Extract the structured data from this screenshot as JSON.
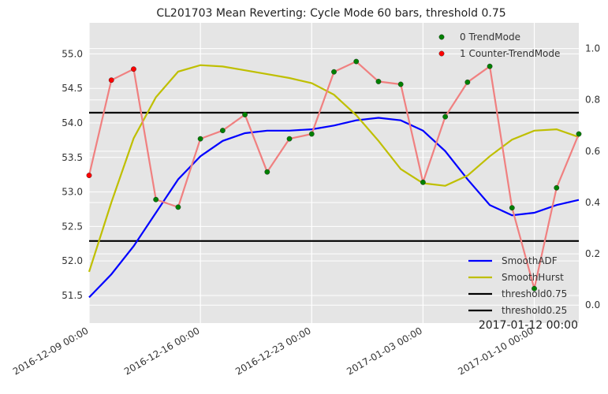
{
  "chart_data": {
    "type": "line",
    "title": "CL201703 Mean Reverting: Cycle Mode 60 bars, threshold 0.75",
    "x_tick_labels": [
      "2016-12-09 00:00",
      "2016-12-16 00:00",
      "2016-12-23 00:00",
      "2017-01-03 00:00",
      "2017-01-10 00:00"
    ],
    "x_tick_index": [
      0,
      5,
      10,
      15,
      20
    ],
    "corner_label": "2017-01-12 00:00",
    "y_left": {
      "ylim": [
        51.1,
        55.45
      ],
      "ticks": [
        51.5,
        52.0,
        52.5,
        53.0,
        53.5,
        54.0,
        54.5,
        55.0
      ],
      "tick_labels": [
        "51.5",
        "52.0",
        "52.5",
        "53.0",
        "53.5",
        "54.0",
        "54.5",
        "55.0"
      ]
    },
    "y_right": {
      "ylim": [
        -0.07,
        1.1
      ],
      "ticks": [
        0.0,
        0.2,
        0.4,
        0.6,
        0.8,
        1.0
      ],
      "tick_labels": [
        "0.0",
        "0.2",
        "0.4",
        "0.6",
        "0.8",
        "1.0"
      ]
    },
    "grid": true,
    "price": {
      "values": [
        53.24,
        54.62,
        54.78,
        52.89,
        52.78,
        53.77,
        53.89,
        54.12,
        53.29,
        53.77,
        53.84,
        54.74,
        54.89,
        54.6,
        54.56,
        53.14,
        54.09,
        54.59,
        54.82,
        52.77,
        51.6,
        53.06,
        53.84
      ],
      "color": "#f08080"
    },
    "modes": [
      1,
      1,
      1,
      0,
      0,
      0,
      0,
      0,
      0,
      0,
      0,
      0,
      0,
      0,
      0,
      0,
      0,
      0,
      0,
      0,
      0,
      0,
      0
    ],
    "series": [
      {
        "name": "SmoothADF",
        "axis": "right",
        "color": "#0000ff",
        "values": [
          0.03,
          0.12,
          0.23,
          0.36,
          0.49,
          0.58,
          0.64,
          0.67,
          0.68,
          0.68,
          0.685,
          0.7,
          0.72,
          0.73,
          0.72,
          0.68,
          0.6,
          0.49,
          0.39,
          0.35,
          0.36,
          0.39,
          0.41
        ]
      },
      {
        "name": "SmoothHurst",
        "axis": "right",
        "color": "#bfbf00",
        "values": [
          0.13,
          0.4,
          0.65,
          0.81,
          0.91,
          0.935,
          0.93,
          0.915,
          0.9,
          0.885,
          0.865,
          0.82,
          0.74,
          0.64,
          0.53,
          0.475,
          0.465,
          0.505,
          0.58,
          0.645,
          0.68,
          0.685,
          0.655
        ]
      },
      {
        "name": "threshold0.75",
        "axis": "right",
        "color": "#000000",
        "values": [
          0.75,
          0.75
        ]
      },
      {
        "name": "threshold0.25",
        "axis": "right",
        "color": "#000000",
        "values": [
          0.25,
          0.25
        ]
      }
    ],
    "legend_top": [
      {
        "name": "0 TrendMode",
        "color": "#008000"
      },
      {
        "name": "1 Counter-TrendMode",
        "color": "#ff0000"
      }
    ],
    "legend_top_placement": "top-right",
    "legend_bottom_placement": "bottom-right"
  }
}
